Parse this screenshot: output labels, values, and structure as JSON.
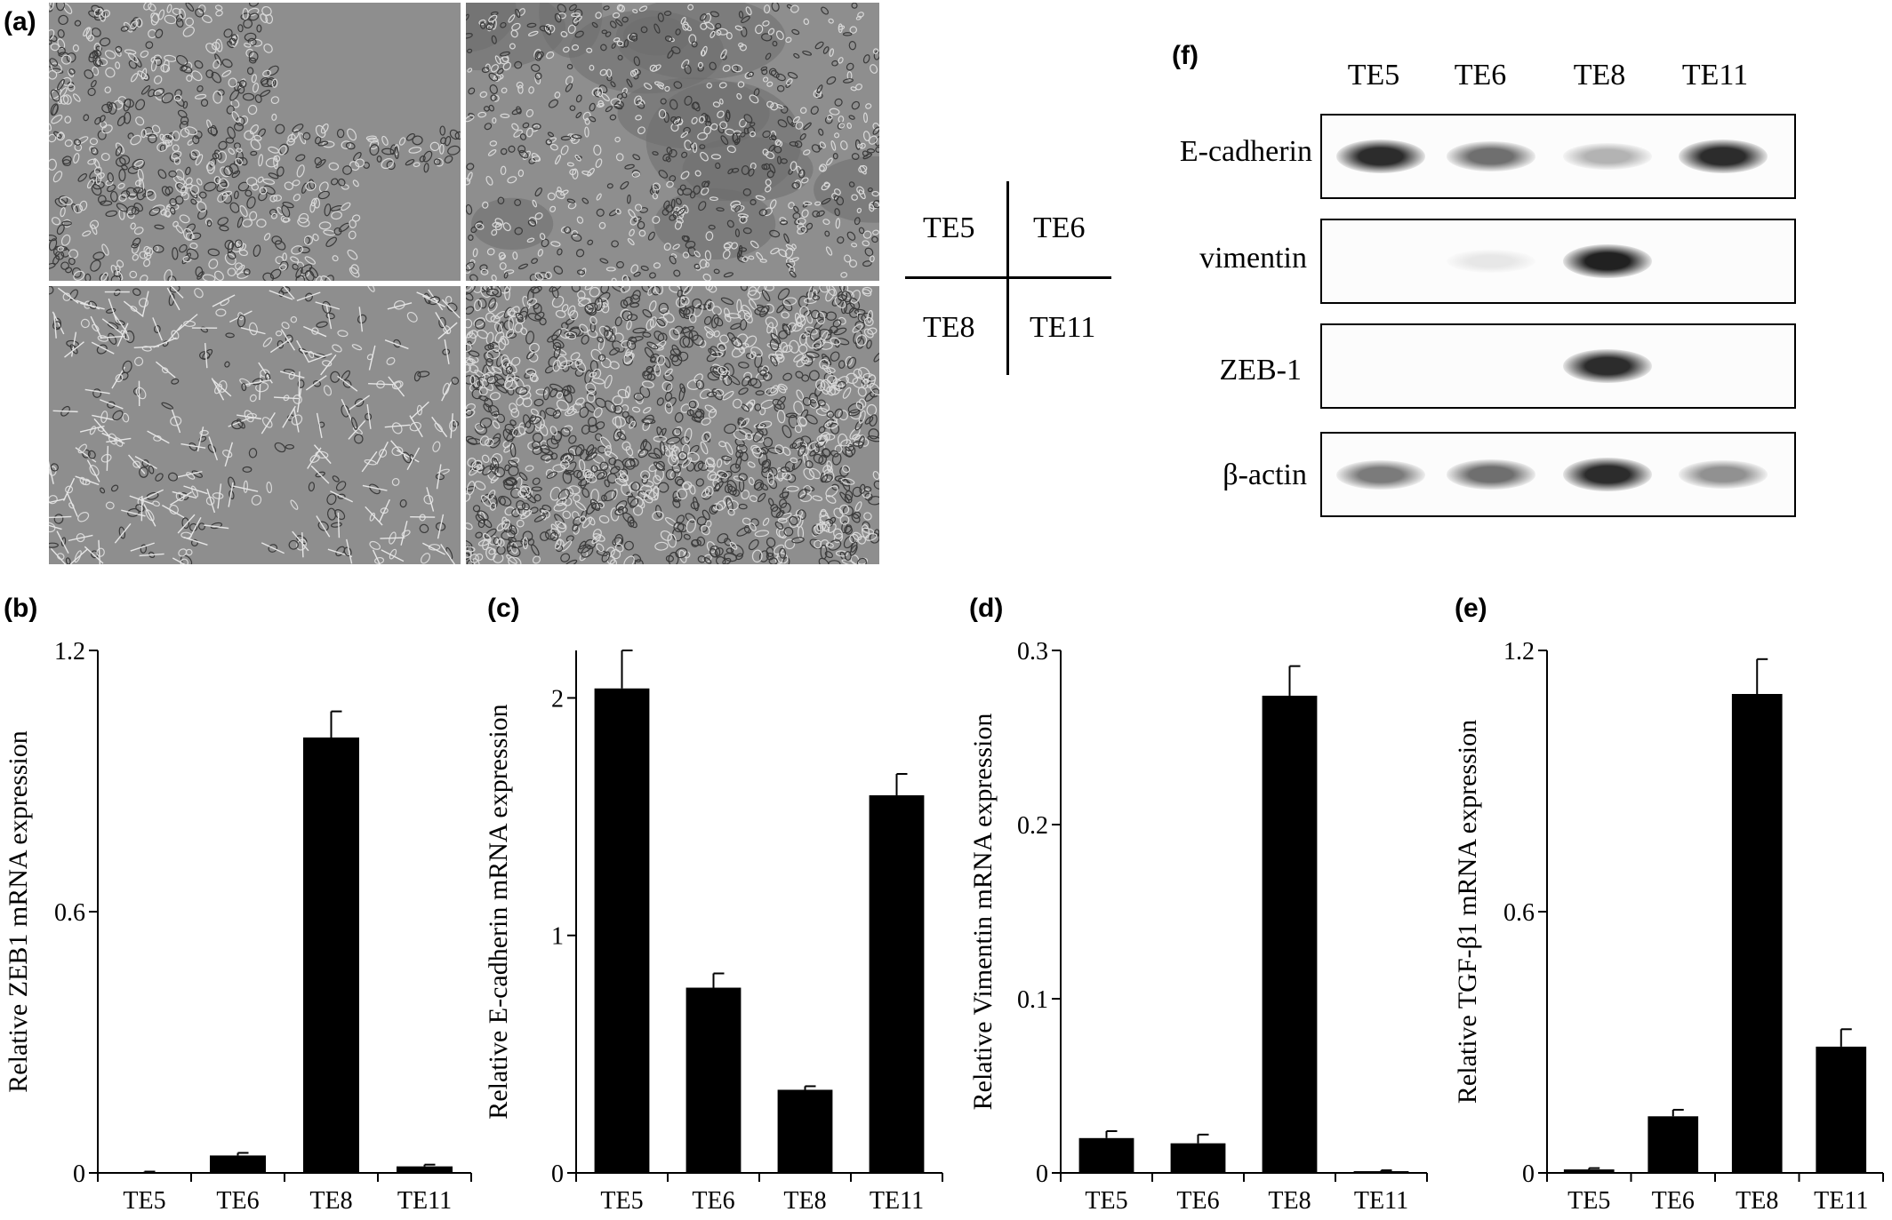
{
  "panel_labels": {
    "a": "(a)",
    "b": "(b)",
    "c": "(c)",
    "d": "(d)",
    "e": "(e)",
    "f": "(f)"
  },
  "micrograph_key": {
    "top_left": "TE5",
    "top_right": "TE6",
    "bottom_left": "TE8",
    "bottom_right": "TE11"
  },
  "western_blot": {
    "lanes": [
      "TE5",
      "TE6",
      "TE8",
      "TE11"
    ],
    "rows": [
      {
        "label": "E-cadherin",
        "intensity": [
          0.85,
          0.55,
          0.25,
          0.85
        ]
      },
      {
        "label": "vimentin",
        "intensity": [
          0.0,
          0.02,
          0.9,
          0.0
        ]
      },
      {
        "label": "ZEB-1",
        "intensity": [
          0.0,
          0.0,
          0.85,
          0.0
        ]
      },
      {
        "label": "β-actin",
        "intensity": [
          0.5,
          0.55,
          0.85,
          0.4
        ]
      }
    ]
  },
  "chart_data": [
    {
      "panel": "b",
      "type": "bar",
      "categories": [
        "TE5",
        "TE6",
        "TE8",
        "TE11"
      ],
      "values": [
        0.001,
        0.04,
        1.0,
        0.015
      ],
      "errors": [
        0.002,
        0.006,
        0.06,
        0.004
      ],
      "ylabel": "Relative ZEB1 mRNA  expression",
      "ylim": [
        0,
        1.2
      ],
      "yticks": [
        0,
        0.6,
        1.2
      ],
      "ytick_labels": [
        "0",
        "0.6",
        "1.2"
      ]
    },
    {
      "panel": "c",
      "type": "bar",
      "categories": [
        "TE5",
        "TE6",
        "TE8",
        "TE11"
      ],
      "values": [
        2.04,
        0.78,
        0.35,
        1.59
      ],
      "errors": [
        0.16,
        0.06,
        0.015,
        0.09
      ],
      "ylabel": "Relative E-cadherin mRNA expression",
      "ylim": [
        0,
        2.2
      ],
      "yticks": [
        0,
        1,
        2
      ],
      "ytick_labels": [
        "0",
        "1",
        "2"
      ]
    },
    {
      "panel": "d",
      "type": "bar",
      "categories": [
        "TE5",
        "TE6",
        "TE8",
        "TE11"
      ],
      "values": [
        0.02,
        0.017,
        0.274,
        0.001
      ],
      "errors": [
        0.004,
        0.005,
        0.017,
        0.0005
      ],
      "ylabel": "Relative Vimentin mRNA  expression",
      "ylim": [
        0,
        0.3
      ],
      "yticks": [
        0,
        0.1,
        0.2,
        0.3
      ],
      "ytick_labels": [
        "0",
        "0.1",
        "0.2",
        "0.3"
      ]
    },
    {
      "panel": "e",
      "type": "bar",
      "categories": [
        "TE5",
        "TE6",
        "TE8",
        "TE11"
      ],
      "values": [
        0.008,
        0.13,
        1.1,
        0.29
      ],
      "errors": [
        0.003,
        0.015,
        0.08,
        0.04
      ],
      "ylabel": "Relative TGF-β1 mRNA expression",
      "ylim": [
        0,
        1.2
      ],
      "yticks": [
        0,
        0.6,
        1.2
      ],
      "ytick_labels": [
        "0",
        "0.6",
        "1.2"
      ]
    }
  ]
}
